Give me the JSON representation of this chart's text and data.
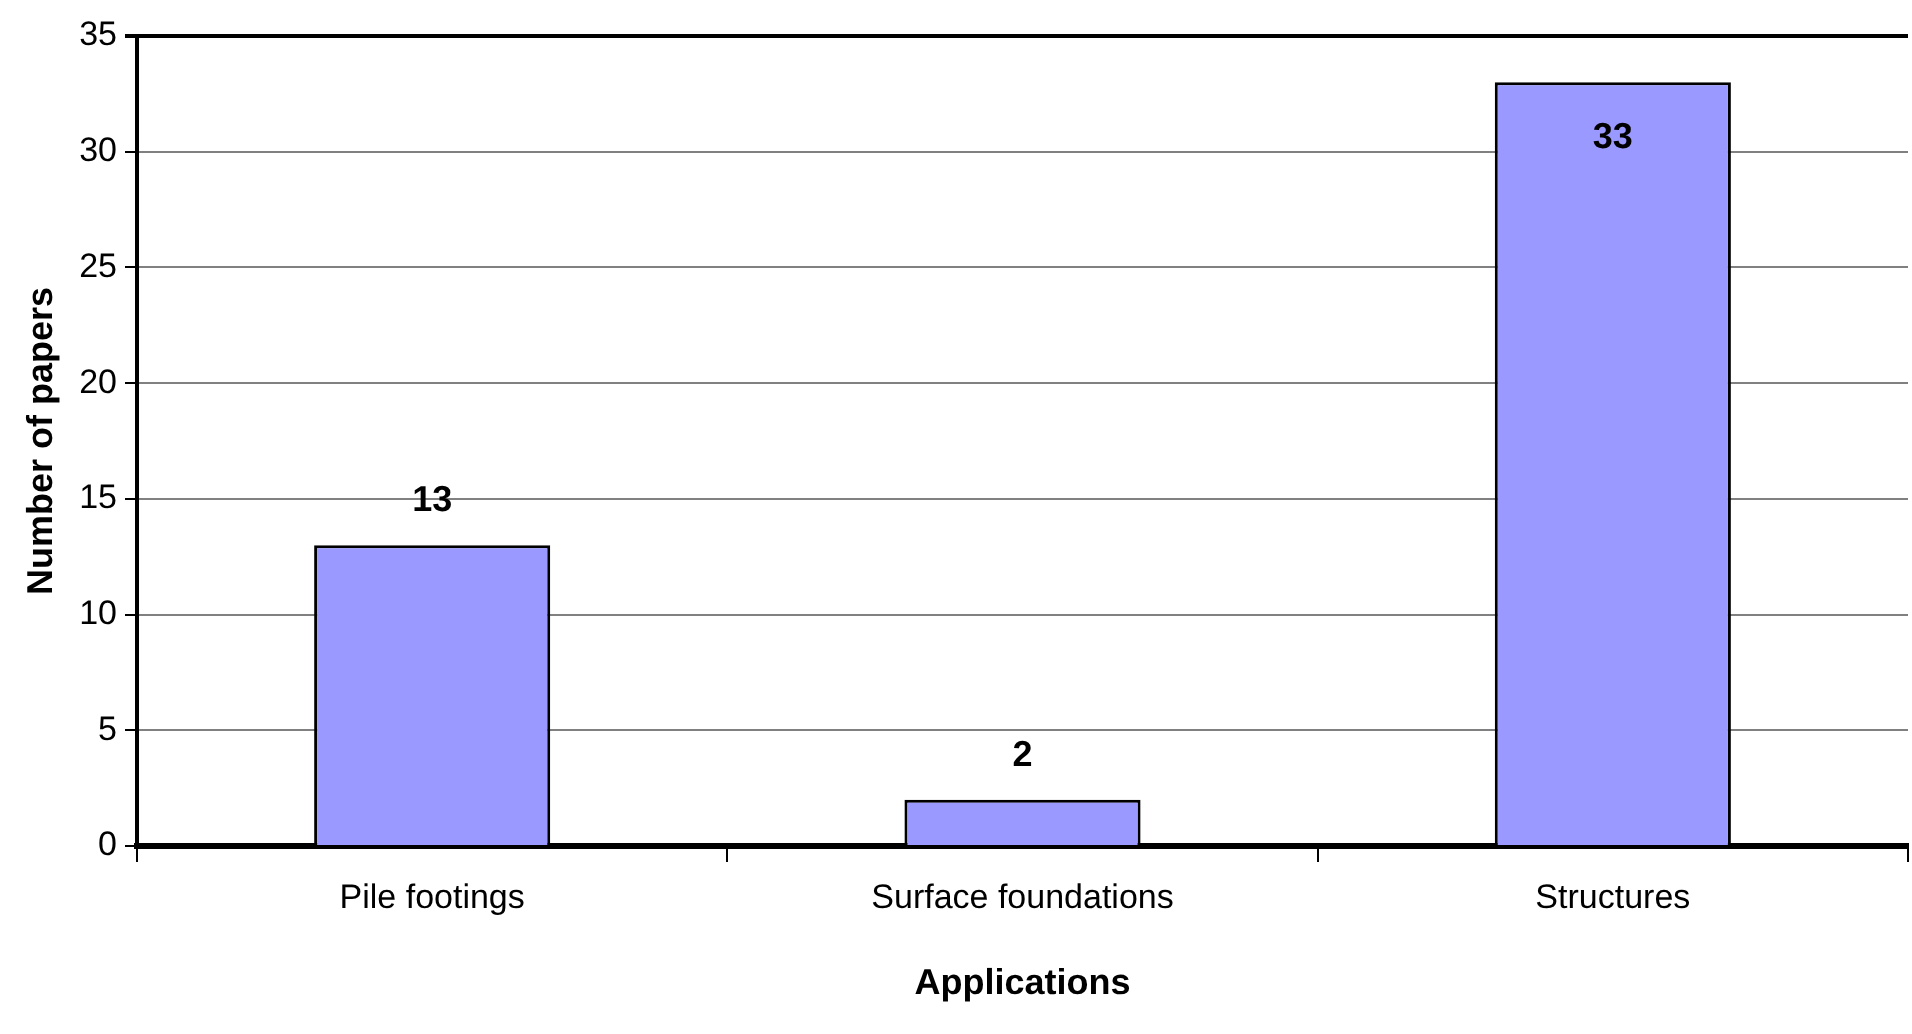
{
  "chart_data": {
    "type": "bar",
    "xlabel": "Applications",
    "ylabel": "Number of papers",
    "categories": [
      "Pile footings",
      "Surface foundations",
      "Structures"
    ],
    "values": [
      13,
      2,
      33
    ],
    "color": "#9999ff",
    "ylim": [
      0,
      35
    ],
    "yticks": [
      0,
      5,
      10,
      15,
      20,
      25,
      30,
      35
    ],
    "grid": "y",
    "data_labels": true
  }
}
